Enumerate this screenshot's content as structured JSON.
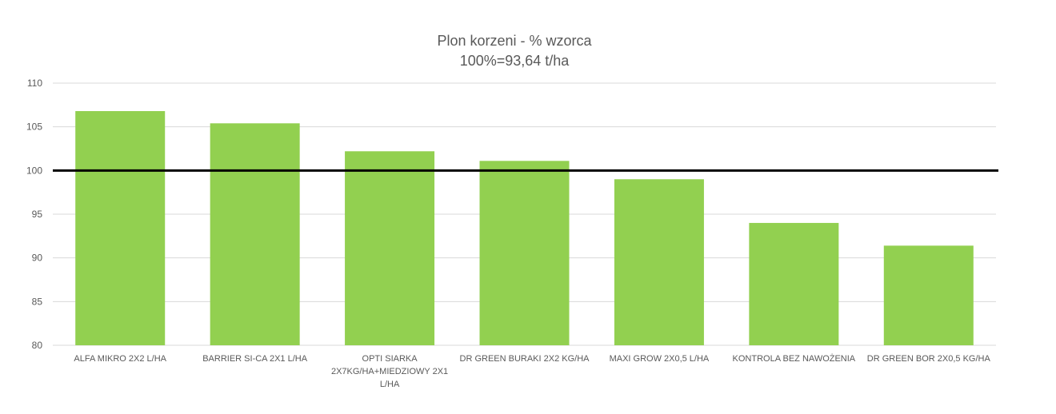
{
  "chart_data": {
    "type": "bar",
    "title": "Plon korzeni - % wzorca",
    "subtitle": "100%=93,64 t/ha",
    "categories": [
      [
        "ALFA MIKRO 2X2 L/HA"
      ],
      [
        "BARRIER SI-CA 2X1 L/HA"
      ],
      [
        "OPTI SIARKA",
        "2X7KG/HA+MIEDZIOWY 2X1",
        "L/HA"
      ],
      [
        "DR GREEN BURAKI 2X2 KG/HA"
      ],
      [
        "MAXI GROW 2X0,5 L/HA"
      ],
      [
        "KONTROLA BEZ NAWOŻENIA"
      ],
      [
        "DR GREEN BOR 2X0,5 KG/HA"
      ]
    ],
    "values": [
      106.8,
      105.4,
      102.2,
      101.1,
      99.0,
      94.0,
      91.4
    ],
    "ylim": [
      80,
      110
    ],
    "yticks": [
      "80",
      "85",
      "90",
      "95",
      "100",
      "105",
      "110"
    ],
    "reference_line": 100,
    "grid": true,
    "xlabel": "",
    "ylabel": "",
    "colors": {
      "bar": "#92d050",
      "reference": "#000000",
      "grid": "#d9d9d9",
      "text": "#595959"
    }
  }
}
